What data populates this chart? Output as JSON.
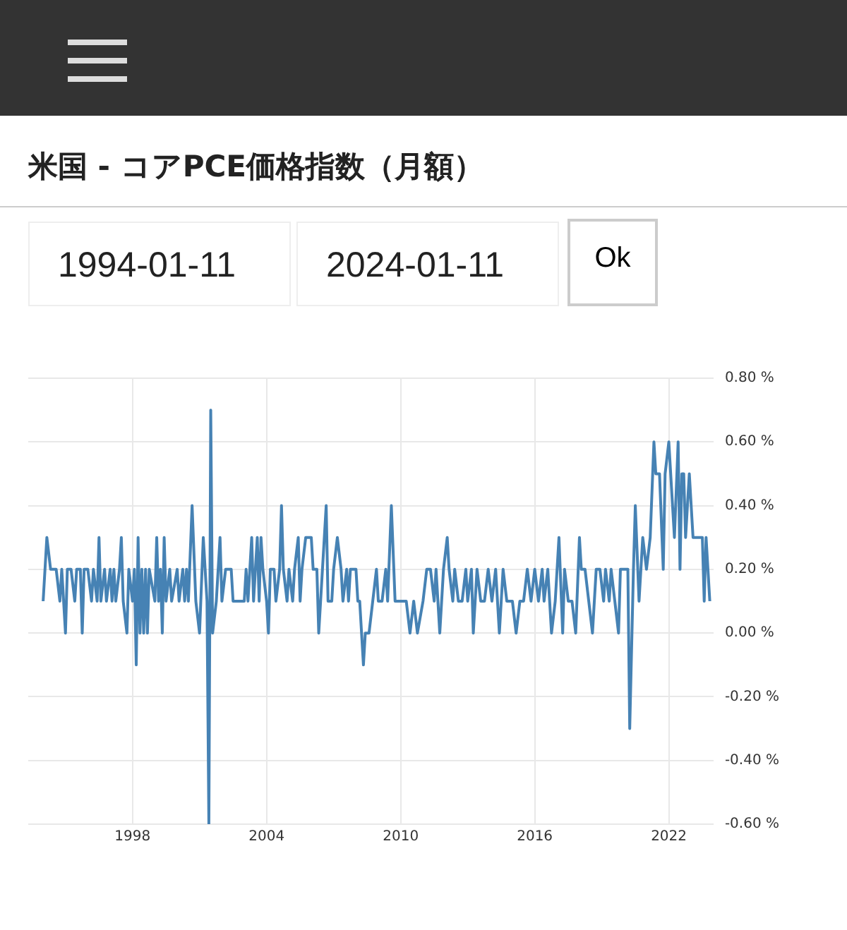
{
  "chart_data": {
    "type": "line",
    "title": "米国 - コアPCE価格指数（月額）",
    "annotations": [
      "1994-01-11",
      "2024-01-11",
      "Ok"
    ],
    "x": [
      "1994-01",
      "1994-03",
      "1994-05",
      "1994-08",
      "1994-10",
      "1994-11",
      "1995-01",
      "1995-02",
      "1995-04",
      "1995-06",
      "1995-07",
      "1995-09",
      "1995-10",
      "1995-11",
      "1996-01",
      "1996-03",
      "1996-04",
      "1996-06",
      "1996-07",
      "1996-08",
      "1996-10",
      "1996-11",
      "1997-01",
      "1997-02",
      "1997-03",
      "1997-04",
      "1997-06",
      "1997-07",
      "1997-08",
      "1997-10",
      "1997-11",
      "1998-01",
      "1998-02",
      "1998-03",
      "1998-04",
      "1998-05",
      "1998-06",
      "1998-07",
      "1998-08",
      "1998-09",
      "1998-10",
      "1999-01",
      "1999-02",
      "1999-03",
      "1999-04",
      "1999-05",
      "1999-06",
      "1999-07",
      "1999-09",
      "1999-10",
      "2000-01",
      "2000-02",
      "2000-04",
      "2000-05",
      "2000-06",
      "2000-07",
      "2000-09",
      "2000-11",
      "2001-01",
      "2001-03",
      "2001-05",
      "2001-06",
      "2001-07",
      "2001-08",
      "2001-10",
      "2001-12",
      "2002-01",
      "2002-03",
      "2002-06",
      "2002-07",
      "2002-10",
      "2003-01",
      "2003-02",
      "2003-03",
      "2003-05",
      "2003-06",
      "2003-08",
      "2003-09",
      "2003-10",
      "2003-11",
      "2004-01",
      "2004-02",
      "2004-03",
      "2004-05",
      "2004-06",
      "2004-08",
      "2004-09",
      "2004-10",
      "2004-12",
      "2005-01",
      "2005-03",
      "2005-04",
      "2005-06",
      "2005-07",
      "2005-08",
      "2005-10",
      "2006-01",
      "2006-02",
      "2006-04",
      "2006-05",
      "2006-07",
      "2006-09",
      "2006-10",
      "2006-12",
      "2007-01",
      "2007-03",
      "2007-05",
      "2007-06",
      "2007-08",
      "2007-09",
      "2007-10",
      "2008-01",
      "2008-02",
      "2008-03",
      "2008-05",
      "2008-06",
      "2008-08",
      "2008-10",
      "2008-12",
      "2009-01",
      "2009-03",
      "2009-05",
      "2009-06",
      "2009-08",
      "2009-10",
      "2010-01",
      "2010-04",
      "2010-06",
      "2010-08",
      "2010-10",
      "2011-01",
      "2011-03",
      "2011-05",
      "2011-07",
      "2011-08",
      "2011-10",
      "2011-12",
      "2012-02",
      "2012-03",
      "2012-05",
      "2012-06",
      "2012-08",
      "2012-10",
      "2012-12",
      "2013-01",
      "2013-03",
      "2013-04",
      "2013-06",
      "2013-08",
      "2013-10",
      "2013-12",
      "2014-02",
      "2014-04",
      "2014-06",
      "2014-08",
      "2014-10",
      "2015-01",
      "2015-03",
      "2015-05",
      "2015-07",
      "2015-09",
      "2015-11",
      "2016-01",
      "2016-03",
      "2016-05",
      "2016-06",
      "2016-08",
      "2016-10",
      "2016-12",
      "2017-02",
      "2017-04",
      "2017-05",
      "2017-07",
      "2017-09",
      "2017-11",
      "2018-01",
      "2018-02",
      "2018-04",
      "2018-06",
      "2018-08",
      "2018-10",
      "2018-12",
      "2019-02",
      "2019-03",
      "2019-05",
      "2019-06",
      "2019-08",
      "2019-10",
      "2019-11",
      "2020-01",
      "2020-03",
      "2020-04",
      "2020-06",
      "2020-07",
      "2020-09",
      "2020-11",
      "2021-01",
      "2021-03",
      "2021-05",
      "2021-06",
      "2021-08",
      "2021-10",
      "2021-11",
      "2022-01",
      "2022-03",
      "2022-04",
      "2022-06",
      "2022-07",
      "2022-08",
      "2022-09",
      "2022-10",
      "2022-12",
      "2023-02",
      "2023-04",
      "2023-05",
      "2023-07",
      "2023-08",
      "2023-09",
      "2023-11"
    ],
    "series": [
      {
        "color": "#4682b4",
        "values": [
          0.1,
          0.3,
          0.2,
          0.2,
          0.1,
          0.2,
          0.0,
          0.2,
          0.2,
          0.1,
          0.2,
          0.2,
          0.0,
          0.2,
          0.2,
          0.1,
          0.2,
          0.1,
          0.3,
          0.1,
          0.2,
          0.1,
          0.2,
          0.1,
          0.2,
          0.1,
          0.2,
          0.3,
          0.1,
          0.0,
          0.2,
          0.1,
          0.2,
          -0.1,
          0.3,
          0.0,
          0.2,
          0.0,
          0.2,
          0.0,
          0.2,
          0.1,
          0.3,
          0.1,
          0.2,
          0.0,
          0.3,
          0.1,
          0.2,
          0.1,
          0.2,
          0.1,
          0.2,
          0.1,
          0.2,
          0.1,
          0.4,
          0.1,
          0.0,
          0.3,
          0.1,
          -0.6,
          0.7,
          0.0,
          0.1,
          0.3,
          0.1,
          0.2,
          0.2,
          0.1,
          0.1,
          0.1,
          0.2,
          0.1,
          0.3,
          0.1,
          0.3,
          0.1,
          0.3,
          0.2,
          0.1,
          0.0,
          0.2,
          0.2,
          0.1,
          0.2,
          0.4,
          0.2,
          0.1,
          0.2,
          0.1,
          0.2,
          0.3,
          0.1,
          0.2,
          0.3,
          0.3,
          0.2,
          0.2,
          0.0,
          0.2,
          0.4,
          0.1,
          0.1,
          0.2,
          0.3,
          0.2,
          0.1,
          0.2,
          0.1,
          0.2,
          0.2,
          0.1,
          0.1,
          -0.1,
          0.0,
          0.0,
          0.1,
          0.2,
          0.1,
          0.1,
          0.2,
          0.1,
          0.4,
          0.1,
          0.1,
          0.1,
          0.0,
          0.1,
          0.0,
          0.1,
          0.2,
          0.2,
          0.1,
          0.2,
          0.0,
          0.2,
          0.3,
          0.2,
          0.1,
          0.2,
          0.1,
          0.1,
          0.2,
          0.1,
          0.2,
          0.0,
          0.2,
          0.1,
          0.1,
          0.2,
          0.1,
          0.2,
          0.0,
          0.2,
          0.1,
          0.1,
          0.0,
          0.1,
          0.1,
          0.2,
          0.1,
          0.2,
          0.1,
          0.2,
          0.1,
          0.2,
          0.0,
          0.1,
          0.3,
          0.0,
          0.2,
          0.1,
          0.1,
          0.0,
          0.3,
          0.2,
          0.2,
          0.1,
          0.0,
          0.2,
          0.2,
          0.1,
          0.2,
          0.1,
          0.2,
          0.1,
          0.0,
          0.2,
          0.2,
          0.2,
          -0.3,
          0.2,
          0.4,
          0.1,
          0.3,
          0.2,
          0.3,
          0.6,
          0.5,
          0.5,
          0.2,
          0.5,
          0.6,
          0.4,
          0.3,
          0.6,
          0.2,
          0.5,
          0.5,
          0.3,
          0.5,
          0.3,
          0.3,
          0.3,
          0.3,
          0.1,
          0.3,
          0.1
        ]
      }
    ],
    "xlim": [
      "1993-05",
      "2024-01"
    ],
    "xticks": [
      "1998",
      "2004",
      "2010",
      "2016",
      "2022"
    ],
    "ylim": [
      -0.6,
      0.8
    ],
    "yticks": [
      {
        "value": -0.6,
        "label": "-0.60 %"
      },
      {
        "value": -0.4,
        "label": "-0.40 %"
      },
      {
        "value": -0.2,
        "label": "-0.20 %"
      },
      {
        "value": 0,
        "label": "0.00 %"
      },
      {
        "value": 0.2,
        "label": "0.20 %"
      },
      {
        "value": 0.4,
        "label": "0.40 %"
      },
      {
        "value": 0.6,
        "label": "0.60 %"
      },
      {
        "value": 0.8,
        "label": "0.80 %"
      }
    ],
    "grid": true,
    "legend": false,
    "marker": "none",
    "line_style": "solid"
  }
}
